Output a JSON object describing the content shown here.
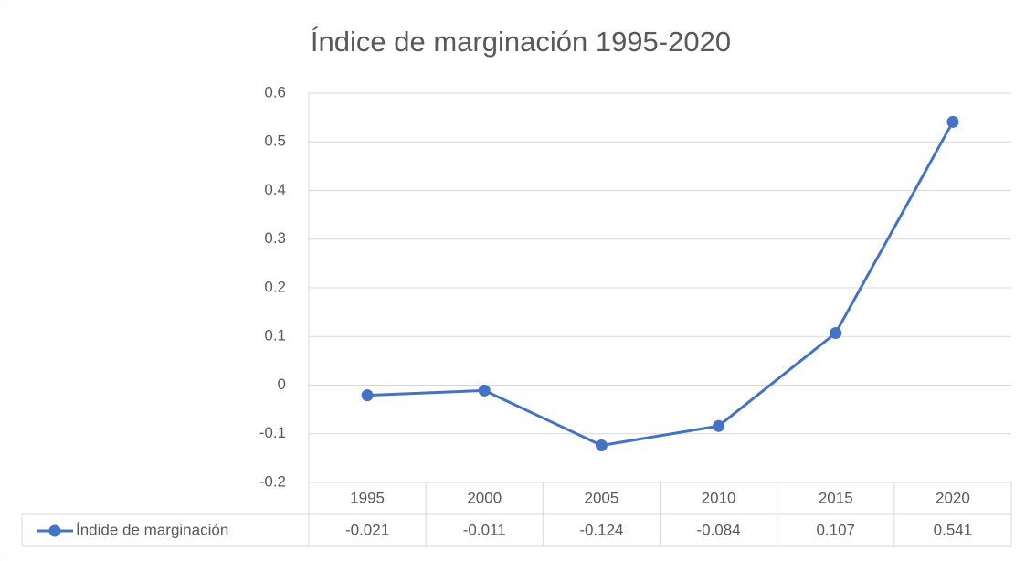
{
  "chart_data": {
    "type": "line",
    "title": "Índice de marginación 1995-2020",
    "categories": [
      "1995",
      "2000",
      "2005",
      "2010",
      "2015",
      "2020"
    ],
    "series": [
      {
        "name": "Índide de marginación",
        "color": "#4472c4",
        "values": [
          -0.021,
          -0.011,
          -0.124,
          -0.084,
          0.107,
          0.541
        ]
      }
    ],
    "ylim": [
      -0.2,
      0.6
    ],
    "yticks": [
      -0.2,
      -0.1,
      0,
      0.1,
      0.2,
      0.3,
      0.4,
      0.5,
      0.6
    ],
    "grid": true,
    "data_table": true
  }
}
